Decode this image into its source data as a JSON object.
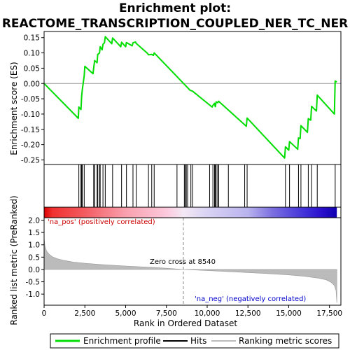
{
  "chart_data": {
    "type": "line",
    "title_line1": "Enrichment plot:",
    "title_line2": "REACTOME_TRANSCRIPTION_COUPLED_NER_TC_NER",
    "xlabel": "Rank in Ordered Dataset",
    "xlim": [
      0,
      18200
    ],
    "xticks": [
      0,
      2500,
      5000,
      7500,
      10000,
      12500,
      15000,
      17500
    ],
    "xtick_labels": [
      "0",
      "2,500",
      "5,000",
      "7,500",
      "10,000",
      "12,500",
      "15,000",
      "17,500"
    ],
    "es_panel": {
      "ylabel": "Enrichment score (ES)",
      "ylim": [
        -0.265,
        0.17
      ],
      "yticks": [
        -0.25,
        -0.2,
        -0.15,
        -0.1,
        -0.05,
        0.0,
        0.05,
        0.1,
        0.15
      ],
      "ytick_labels": [
        "-0.25",
        "-0.20",
        "-0.15",
        "-0.10",
        "-0.05",
        "0.00",
        "0.05",
        "0.10",
        "0.15"
      ],
      "series": [
        {
          "name": "Enrichment profile",
          "color": "#00dd00",
          "x": [
            0,
            2100,
            2130,
            2260,
            2300,
            2340,
            2460,
            2500,
            3000,
            3040,
            3100,
            3250,
            3290,
            3400,
            3440,
            3560,
            3610,
            3700,
            3750,
            4150,
            4200,
            4700,
            4750,
            5000,
            5050,
            5400,
            5450,
            5600,
            5650,
            6350,
            6400,
            6600,
            6700,
            6750,
            8950,
            9100,
            10300,
            10350,
            10450,
            10500,
            10550,
            10650,
            10700,
            12400,
            12450,
            14750,
            14800,
            15000,
            15050,
            15550,
            15600,
            15700,
            15750,
            16150,
            16200,
            16350,
            16400,
            16700,
            16750,
            17800,
            17850,
            17950
          ],
          "y": [
            0.0,
            -0.114,
            -0.077,
            -0.085,
            -0.043,
            -0.022,
            0.025,
            0.056,
            0.032,
            0.05,
            0.075,
            0.068,
            0.095,
            0.1,
            0.12,
            0.11,
            0.128,
            0.133,
            0.153,
            0.13,
            0.149,
            0.12,
            0.135,
            0.12,
            0.134,
            0.123,
            0.133,
            0.136,
            0.131,
            0.098,
            0.094,
            0.095,
            0.092,
            0.1,
            -0.022,
            -0.025,
            -0.077,
            -0.072,
            -0.065,
            -0.076,
            -0.06,
            -0.063,
            -0.058,
            -0.14,
            -0.113,
            -0.244,
            -0.207,
            -0.218,
            -0.19,
            -0.215,
            -0.178,
            -0.18,
            -0.138,
            -0.16,
            -0.115,
            -0.12,
            -0.075,
            -0.09,
            -0.038,
            -0.1,
            0.008,
            0.005
          ]
        }
      ]
    },
    "hits": {
      "name": "Hits",
      "x": [
        2130,
        2260,
        2300,
        2340,
        2460,
        3040,
        3100,
        3250,
        3290,
        3400,
        3440,
        3610,
        3750,
        4200,
        4750,
        5050,
        5450,
        5650,
        6400,
        6600,
        6750,
        8150,
        8600,
        8650,
        8720,
        8800,
        9000,
        9100,
        10150,
        10350,
        10450,
        10500,
        10550,
        10650,
        10700,
        11300,
        12300,
        12450,
        14800,
        15050,
        15600,
        15750,
        16200,
        16400,
        16750,
        17850
      ]
    },
    "metric_panel": {
      "name": "Ranking metric scores",
      "ylabel": "Ranked list metric (PreRanked)",
      "ylim": [
        -1.45,
        2.1
      ],
      "yticks": [
        -1.0,
        -0.5,
        0.0,
        0.5,
        1.0,
        1.5,
        2.0
      ],
      "ytick_labels": [
        "-1.0",
        "-0.5",
        "0.0",
        "0.5",
        "1.0",
        "1.5",
        "2.0"
      ],
      "color": "#bbbbbb",
      "x": [
        0,
        50,
        150,
        300,
        500,
        800,
        1200,
        1800,
        2500,
        3500,
        5000,
        6500,
        7500,
        8540,
        9500,
        10500,
        12000,
        13500,
        15000,
        16000,
        16800,
        17300,
        17600,
        17800,
        17900,
        17950
      ],
      "y": [
        1.3,
        0.95,
        0.75,
        0.62,
        0.52,
        0.44,
        0.37,
        0.3,
        0.25,
        0.2,
        0.14,
        0.09,
        0.05,
        0.0,
        -0.03,
        -0.06,
        -0.11,
        -0.16,
        -0.22,
        -0.28,
        -0.35,
        -0.42,
        -0.52,
        -0.65,
        -0.85,
        -1.35
      ]
    },
    "annotations": {
      "pos_label": "'na_pos' (positively correlated)",
      "neg_label": "'na_neg' (negatively correlated)",
      "zero_cross": "Zero cross at 8540",
      "zero_cross_x": 8540
    },
    "heat_bar": {
      "stops": [
        {
          "x": 0,
          "color": "#dd0000"
        },
        {
          "x": 500,
          "color": "#f03030"
        },
        {
          "x": 2500,
          "color": "#f35b60"
        },
        {
          "x": 5000,
          "color": "#f9a0ae"
        },
        {
          "x": 7500,
          "color": "#fcc9dc"
        },
        {
          "x": 8540,
          "color": "#f3e8f4"
        },
        {
          "x": 10000,
          "color": "#d9d3f4"
        },
        {
          "x": 12500,
          "color": "#b9b3ee"
        },
        {
          "x": 14000,
          "color": "#7b6fe0"
        },
        {
          "x": 16000,
          "color": "#4030d8"
        },
        {
          "x": 17000,
          "color": "#2a10cc"
        },
        {
          "x": 17950,
          "color": "#1000b0"
        }
      ]
    },
    "legend": {
      "items": [
        {
          "label": "Enrichment profile",
          "color": "#00dd00"
        },
        {
          "label": "Hits",
          "color": "#000000"
        },
        {
          "label": "Ranking metric scores",
          "color": "#bbbbbb"
        }
      ]
    }
  }
}
